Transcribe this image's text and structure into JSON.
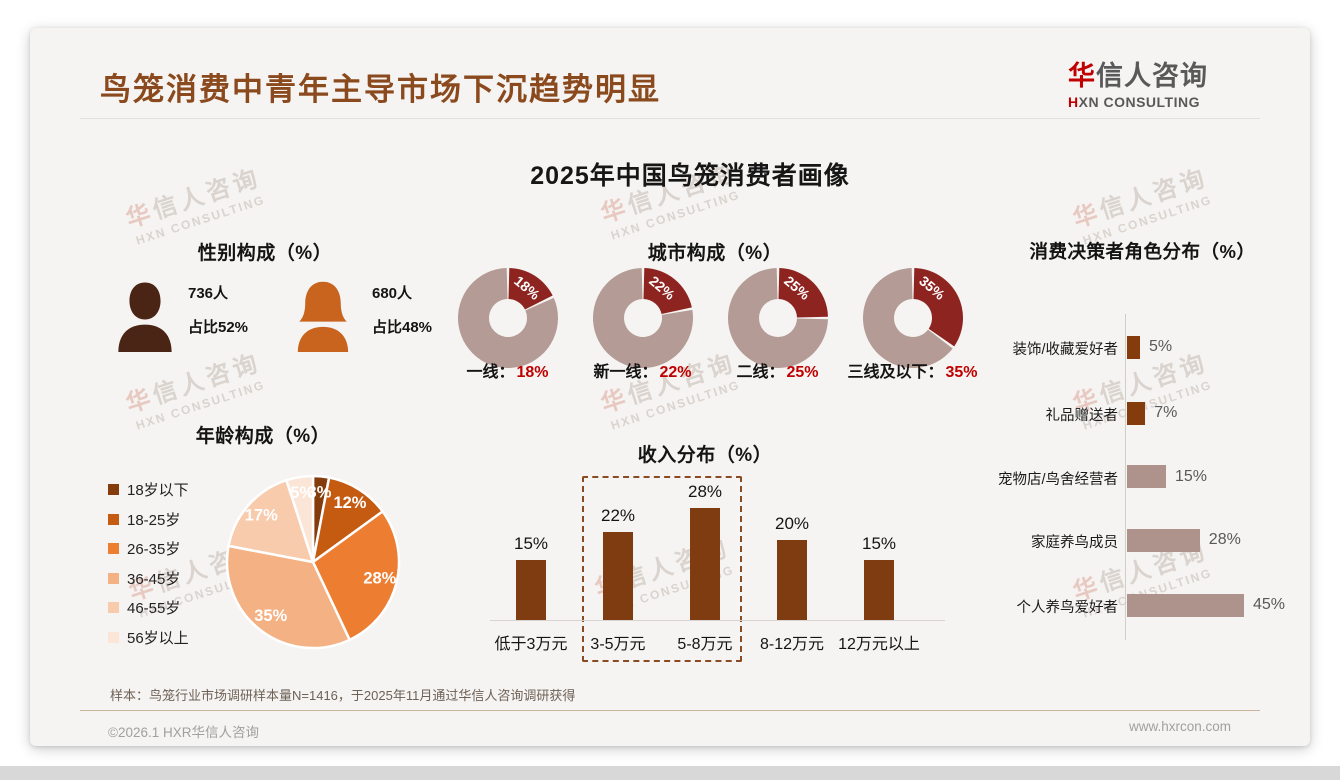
{
  "page": {
    "header_title": "鸟笼消费中青年主导市场下沉趋势明显",
    "logo": {
      "zh_accent": "华",
      "zh_rest": "信人咨询",
      "en_accent": "H",
      "en_rest": "XN CONSULTING"
    },
    "watermark": {
      "zh": "华信人咨询",
      "en": "HXN CONSULTING"
    },
    "main_title": "2025年中国鸟笼消费者画像",
    "footnote": "样本：鸟笼行业市场调研样本量N=1416，于2025年11月通过华信人咨询调研获得",
    "copyright": "©2026.1 HXR华信人咨询",
    "website": "www.hxrcon.com"
  },
  "colors": {
    "header_title": "#8B4A1E",
    "logo_accent": "#C00000",
    "logo_gray": "#595959",
    "value_red": "#C00000",
    "donut_segment": "#8E2420",
    "donut_remainder": "#B49B95",
    "income_bar": "#7E3C10",
    "decision_dark": "#843C0C",
    "decision_light": "#AE938D"
  },
  "chart_data": [
    {
      "type": "pictogram",
      "title": "性别构成（%）",
      "male": {
        "label": "男",
        "count": "736人",
        "share": "占比52%",
        "value": 52,
        "color": "#4A2414"
      },
      "female": {
        "label": "女",
        "count": "680人",
        "share": "占比48%",
        "value": 48,
        "color": "#C8641E"
      }
    },
    {
      "type": "pie",
      "variant": "donut",
      "title": "城市构成（%）",
      "categories": [
        "一线",
        "新一线",
        "二线",
        "三线及以下"
      ],
      "values": [
        18,
        22,
        25,
        35
      ],
      "segment_color": "#8E2420",
      "remainder_color": "#B49B95",
      "value_label_color": "#C00000"
    },
    {
      "type": "pie",
      "title": "年龄构成（%）",
      "categories": [
        "18岁以下",
        "18-25岁",
        "26-35岁",
        "36-45岁",
        "46-55岁",
        "56岁以上"
      ],
      "values": [
        3,
        12,
        28,
        35,
        17,
        5
      ],
      "colors": [
        "#843C0C",
        "#C55A11",
        "#ED7D31",
        "#F4B183",
        "#F8CBAD",
        "#FBE5D6"
      ],
      "legend_position": "left"
    },
    {
      "type": "bar",
      "title": "收入分布（%）",
      "categories": [
        "低于3万元",
        "3-5万元",
        "5-8万元",
        "8-12万元",
        "12万元以上"
      ],
      "values": [
        15,
        22,
        28,
        20,
        15
      ],
      "bar_color": "#7E3C10",
      "highlight": {
        "categories": [
          "3-5万元",
          "5-8万元"
        ],
        "style": "dashed-box"
      }
    },
    {
      "type": "bar",
      "orientation": "horizontal",
      "title": "消费决策者角色分布（%）",
      "categories": [
        "装饰/收藏爱好者",
        "礼品赠送者",
        "宠物店/鸟舍经营者",
        "家庭养鸟成员",
        "个人养鸟爱好者"
      ],
      "values": [
        5,
        7,
        15,
        28,
        45
      ],
      "bar_colors": [
        "#843C0C",
        "#843C0C",
        "#AE938D",
        "#AE938D",
        "#AE938D"
      ]
    }
  ]
}
